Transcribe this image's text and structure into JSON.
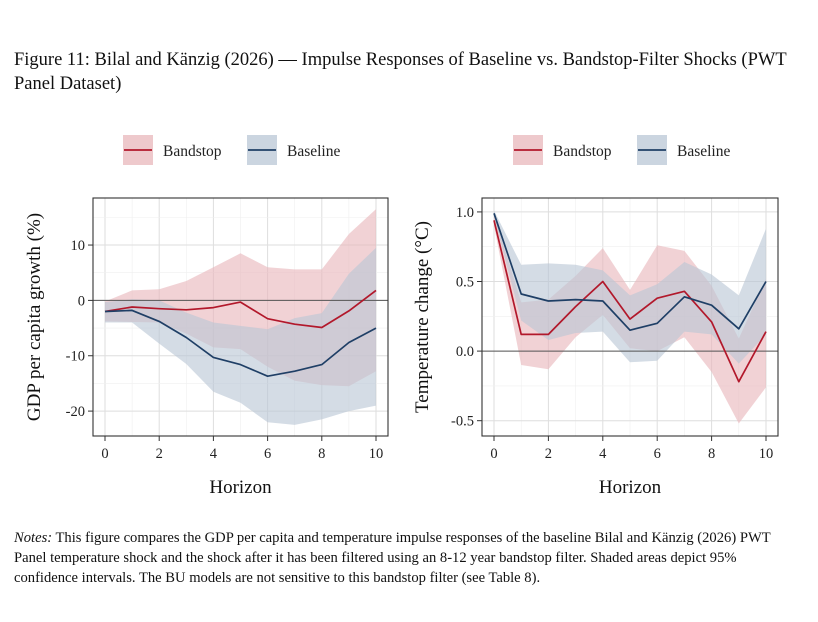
{
  "figure": {
    "title": "Figure 11: Bilal and Känzig (2026) — Impulse Responses of Baseline vs. Bandstop-Filter Shocks (PWT Panel Dataset)",
    "notes_label": "Notes:",
    "notes_text": " This figure compares the GDP per capita and temperature impulse responses of the baseline Bilal and Känzig (2026) PWT Panel temperature shock and the shock after it has been filtered using an 8-12 year bandstop filter. Shaded areas depict 95% confidence intervals. The BU models are not sensitive to this bandstop filter (see Table 8)."
  },
  "colors": {
    "bandstop": "#b2182b",
    "bandstop_fill": "#e8b7bb",
    "baseline": "#1f3f66",
    "baseline_fill": "#b9c7d5"
  },
  "chart_data": [
    {
      "type": "line",
      "title": "",
      "xlabel": "Horizon",
      "ylabel": "GDP per capita growth (%)",
      "xlim": [
        0,
        10
      ],
      "ylim": [
        -24.5,
        18.5
      ],
      "xticks": [
        0,
        2,
        4,
        6,
        8,
        10
      ],
      "yticks": [
        10,
        0,
        -10,
        -20
      ],
      "ytick_labels": [
        "10",
        "0",
        "-10",
        "-20"
      ],
      "xtick_labels": [
        "0",
        "2",
        "4",
        "6",
        "8",
        "10"
      ],
      "zero_line": 0,
      "legend": [
        "Bandstop",
        "Baseline"
      ],
      "x": [
        0,
        1,
        2,
        3,
        4,
        5,
        6,
        7,
        8,
        9,
        10
      ],
      "series": [
        {
          "name": "Bandstop",
          "values": [
            -2.0,
            -1.2,
            -1.5,
            -1.7,
            -1.3,
            -0.3,
            -3.3,
            -4.3,
            -4.9,
            -1.9,
            1.8
          ],
          "lower": [
            -3.8,
            -3.9,
            -4.0,
            -6.0,
            -8.5,
            -8.8,
            -12.0,
            -14.5,
            -15.3,
            -15.5,
            -12.8
          ],
          "upper": [
            -0.2,
            1.8,
            2.0,
            3.5,
            6.0,
            8.5,
            6.0,
            5.6,
            5.6,
            12.0,
            16.5
          ]
        },
        {
          "name": "Baseline",
          "values": [
            -2.0,
            -1.8,
            -3.8,
            -6.7,
            -10.3,
            -11.6,
            -13.7,
            -12.8,
            -11.6,
            -7.6,
            -5.0
          ],
          "lower": [
            -4.0,
            -4.0,
            -7.8,
            -11.5,
            -16.5,
            -18.5,
            -22.0,
            -22.5,
            -21.5,
            -20.0,
            -19.0
          ],
          "upper": [
            -0.3,
            0.2,
            0.0,
            -2.2,
            -4.0,
            -4.6,
            -5.2,
            -3.2,
            -2.3,
            4.8,
            9.5
          ]
        }
      ]
    },
    {
      "type": "line",
      "title": "",
      "xlabel": "Horizon",
      "ylabel": "Temperature change (°C)",
      "xlim": [
        0,
        10
      ],
      "ylim": [
        -0.61,
        1.1
      ],
      "xticks": [
        0,
        2,
        4,
        6,
        8,
        10
      ],
      "yticks": [
        1.0,
        0.5,
        0.0,
        -0.5
      ],
      "ytick_labels": [
        "1.0",
        "0.5",
        "0.0",
        "-0.5"
      ],
      "xtick_labels": [
        "0",
        "2",
        "4",
        "6",
        "8",
        "10"
      ],
      "zero_line": 0,
      "legend": [
        "Bandstop",
        "Baseline"
      ],
      "x": [
        0,
        1,
        2,
        3,
        4,
        5,
        6,
        7,
        8,
        9,
        10
      ],
      "series": [
        {
          "name": "Bandstop",
          "values": [
            0.94,
            0.12,
            0.12,
            0.32,
            0.5,
            0.23,
            0.38,
            0.43,
            0.21,
            -0.22,
            0.14
          ],
          "lower": [
            0.9,
            -0.1,
            -0.13,
            0.1,
            0.26,
            0.02,
            0.0,
            0.1,
            -0.15,
            -0.52,
            -0.26
          ],
          "upper": [
            0.98,
            0.35,
            0.37,
            0.54,
            0.74,
            0.44,
            0.76,
            0.72,
            0.47,
            0.09,
            0.52
          ]
        },
        {
          "name": "Baseline",
          "values": [
            0.99,
            0.41,
            0.36,
            0.37,
            0.36,
            0.15,
            0.2,
            0.39,
            0.33,
            0.16,
            0.5
          ],
          "lower": [
            0.97,
            0.22,
            0.08,
            0.13,
            0.14,
            -0.08,
            -0.07,
            0.14,
            0.12,
            -0.09,
            0.12
          ],
          "upper": [
            1.01,
            0.62,
            0.63,
            0.62,
            0.58,
            0.4,
            0.48,
            0.64,
            0.55,
            0.4,
            0.88
          ]
        }
      ]
    }
  ]
}
